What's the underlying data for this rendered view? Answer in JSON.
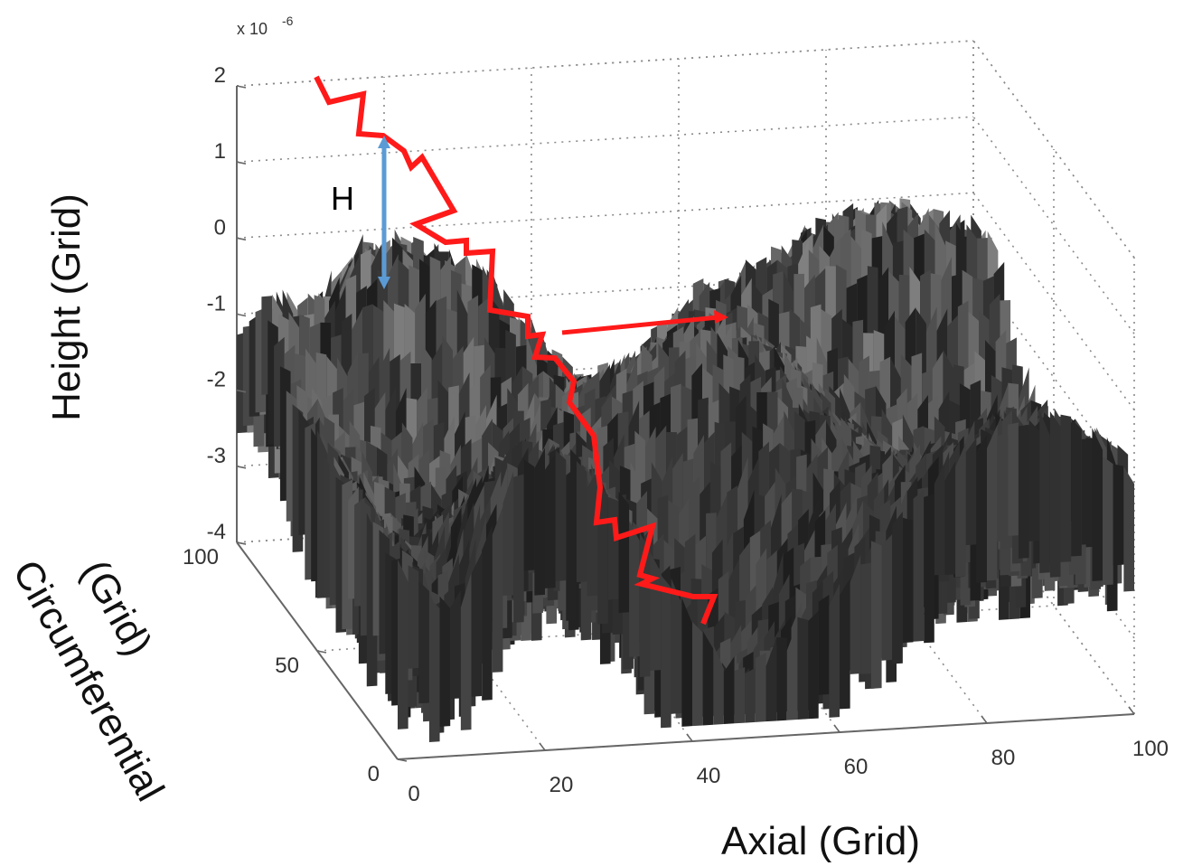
{
  "chart_data": {
    "type": "surface3d",
    "xlabel": "Axial (Grid)",
    "ylabel": "Circumferential (Grid)",
    "ylabel_lines": [
      "Circumferential",
      "(Grid)"
    ],
    "zlabel": "Height (Grid)",
    "exponent_label": "x 10",
    "exponent_power": "-6",
    "x_ticks": [
      "0",
      "20",
      "40",
      "60",
      "80",
      "100"
    ],
    "y_ticks": [
      "0",
      "50",
      "100"
    ],
    "z_ticks": [
      "2",
      "1",
      "0",
      "-1",
      "-2",
      "-3",
      "-4"
    ],
    "xlim": [
      0,
      100
    ],
    "ylim": [
      0,
      100
    ],
    "zlim": [
      -4,
      2
    ],
    "grid": true,
    "annotations": {
      "height_marker_label": "H"
    },
    "colors": {
      "crack_path": "#ff1a1a",
      "height_arrow": "#5b9bd5",
      "surface_dark": "#2a2a2a",
      "surface_light": "#9a9a9a",
      "grid": "#8a8a8a"
    }
  }
}
